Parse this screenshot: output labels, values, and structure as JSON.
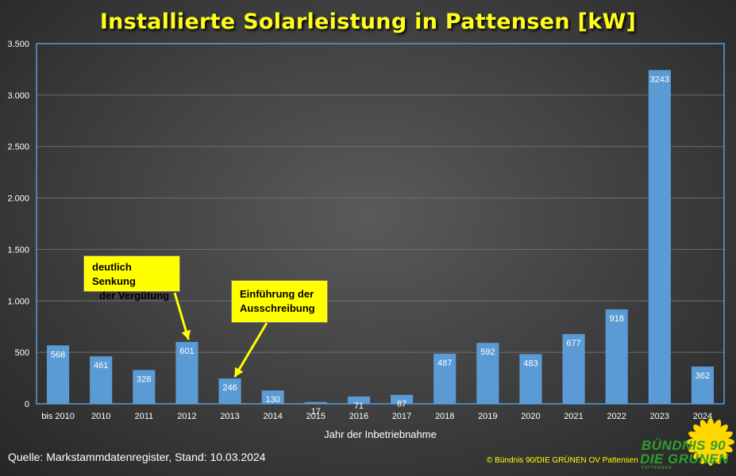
{
  "title": "Installierte Solarleistung in Pattensen [kW]",
  "chart_data": {
    "type": "bar",
    "categories": [
      "bis 2010",
      "2010",
      "2011",
      "2012",
      "2013",
      "2014",
      "2015",
      "2016",
      "2017",
      "2018",
      "2019",
      "2020",
      "2021",
      "2022",
      "2023",
      "2024"
    ],
    "values": [
      568,
      461,
      328,
      601,
      246,
      130,
      17,
      71,
      87,
      487,
      592,
      483,
      677,
      918,
      3243,
      362
    ],
    "data_labels": [
      "568",
      "461",
      "328",
      "601",
      "246",
      "130",
      "17",
      "71",
      "87",
      "487",
      "592",
      "483",
      "677",
      "918",
      "3243",
      "362"
    ],
    "ylim": [
      0,
      3500
    ],
    "yticks": [
      0,
      500,
      1000,
      1500,
      2000,
      2500,
      3000,
      3500
    ],
    "ytick_labels": [
      "0",
      "500",
      "1.000",
      "1.500",
      "2.000",
      "2.500",
      "3.000",
      "3.500"
    ],
    "xlabel": "Jahr der Inbetriebnahme",
    "ylabel": "",
    "grid": true,
    "bar_color": "#5b9bd5",
    "annotations": [
      {
        "line1": "deutlich Senkung",
        "line2": "der Vergütung",
        "target_category": "2012"
      },
      {
        "line1": "Einführung der",
        "line2": "Ausschreibung",
        "target_category": "2013"
      }
    ]
  },
  "source": "Quelle: Markstammdatenregister, Stand: 10.03.2024",
  "copyright": "© Bündnis 90/DIE GRÜNEN OV Pattensen",
  "logo": {
    "line1": "BÜNDNIS 90",
    "line2": "DIE GRÜNEN",
    "sub": "PATTENSEN",
    "icon": "sunflower-icon",
    "color": "#2f9e2f"
  },
  "colors": {
    "title": "#ffff1e",
    "callout": "#ffff00",
    "plot_border": "#5b9bd5"
  }
}
